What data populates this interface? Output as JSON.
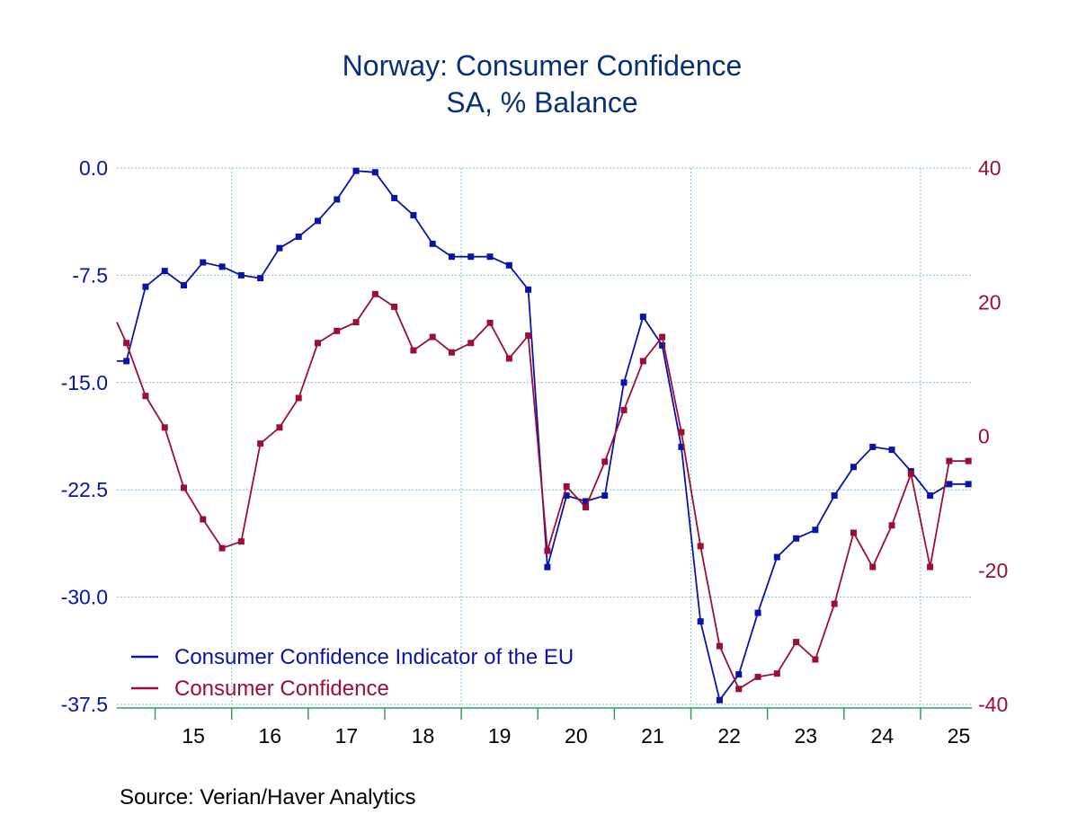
{
  "chart_data": {
    "type": "line",
    "title": "Norway: Consumer Confidence",
    "subtitle": "SA, % Balance",
    "source": "Source:  Verian/Haver Analytics",
    "x_categories": [
      "15",
      "16",
      "17",
      "18",
      "19",
      "20",
      "21",
      "22",
      "23",
      "24",
      "25"
    ],
    "x_range": [
      2014.5,
      2025.67
    ],
    "left_axis": {
      "range": [
        -37.5,
        0.0
      ],
      "ticks": [
        "0.0",
        "-7.5",
        "-15.0",
        "-22.5",
        "-30.0",
        "-37.5"
      ],
      "tick_values": [
        0.0,
        -7.5,
        -15.0,
        -22.5,
        -30.0,
        -37.5
      ]
    },
    "right_axis": {
      "range": [
        -40,
        40
      ],
      "ticks": [
        "40",
        "20",
        "0",
        "-20",
        "-40"
      ],
      "tick_values": [
        40,
        20,
        0,
        -20,
        -40
      ]
    },
    "series": [
      {
        "name": "Consumer Confidence Indicator of the EU",
        "axis": "left",
        "color": "#0a14a8",
        "x": [
          2014.5,
          2014.625,
          2014.875,
          2015.125,
          2015.375,
          2015.625,
          2015.875,
          2016.125,
          2016.375,
          2016.625,
          2016.875,
          2017.125,
          2017.375,
          2017.625,
          2017.875,
          2018.125,
          2018.375,
          2018.625,
          2018.875,
          2019.125,
          2019.375,
          2019.625,
          2019.875,
          2020.125,
          2020.375,
          2020.625,
          2020.875,
          2021.125,
          2021.375,
          2021.625,
          2021.875,
          2022.125,
          2022.375,
          2022.625,
          2022.875,
          2023.125,
          2023.375,
          2023.625,
          2023.875,
          2024.125,
          2024.375,
          2024.625,
          2024.875,
          2025.125,
          2025.375,
          2025.625
        ],
        "values": [
          -13.5,
          -13.5,
          -8.3,
          -7.2,
          -8.2,
          -6.6,
          -6.9,
          -7.5,
          -7.7,
          -5.6,
          -4.8,
          -3.7,
          -2.2,
          -0.2,
          -0.3,
          -2.1,
          -3.3,
          -5.3,
          -6.2,
          -6.2,
          -6.2,
          -6.8,
          -8.5,
          -27.9,
          -22.9,
          -23.3,
          -22.9,
          -15.0,
          -10.4,
          -12.4,
          -19.5,
          -31.7,
          -37.2,
          -35.4,
          -31.1,
          -27.2,
          -25.9,
          -25.3,
          -22.9,
          -20.9,
          -19.5,
          -19.7,
          -21.2,
          -22.9,
          -22.1,
          -22.1
        ]
      },
      {
        "name": "Consumer Confidence",
        "axis": "right",
        "color": "#9b0f35",
        "x": [
          2014.5,
          2014.625,
          2014.875,
          2015.125,
          2015.375,
          2015.625,
          2015.875,
          2016.125,
          2016.375,
          2016.625,
          2016.875,
          2017.125,
          2017.375,
          2017.625,
          2017.875,
          2018.125,
          2018.375,
          2018.625,
          2018.875,
          2019.125,
          2019.375,
          2019.625,
          2019.875,
          2020.125,
          2020.375,
          2020.625,
          2020.875,
          2021.125,
          2021.375,
          2021.625,
          2021.875,
          2022.125,
          2022.375,
          2022.625,
          2022.875,
          2023.125,
          2023.375,
          2023.625,
          2023.875,
          2024.125,
          2024.375,
          2024.625,
          2024.875,
          2025.125,
          2025.375,
          2025.625
        ],
        "values": [
          17,
          13.9,
          6,
          1.3,
          -7.7,
          -12.4,
          -16.7,
          -15.7,
          -1.1,
          1.3,
          5.7,
          13.9,
          15.7,
          17,
          21.2,
          19.3,
          12.8,
          14.8,
          12.5,
          13.9,
          16.9,
          11.6,
          15,
          -17.1,
          -7.5,
          -10.6,
          -3.8,
          3.9,
          11.2,
          14.8,
          0.6,
          -16.4,
          -31.3,
          -37.7,
          -35.9,
          -35.4,
          -30.7,
          -33.3,
          -25,
          -14.4,
          -19.5,
          -13.3,
          -5.6,
          -19.5,
          -3.7,
          -3.7
        ]
      }
    ],
    "legend": {
      "position": "bottom-left",
      "entries": [
        "Consumer Confidence Indicator of the EU",
        "Consumer Confidence"
      ]
    },
    "grid": true
  },
  "colors": {
    "title": "#0a2f7a",
    "left_axis": "#0a14a8",
    "right_axis": "#9b0f35",
    "grid": "#7fbfe0",
    "x_axis": "#2ea05a"
  }
}
